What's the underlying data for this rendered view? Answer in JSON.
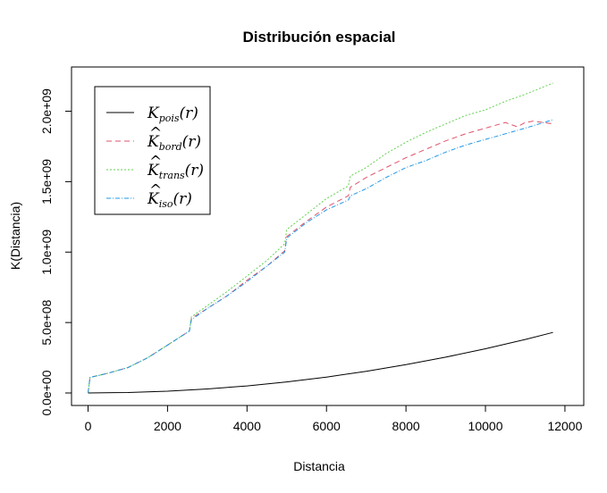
{
  "chart_data": {
    "type": "line",
    "title": "Distribución espacial",
    "xlabel": "Distancia",
    "ylabel": "K(Distancia)",
    "xlim": [
      0,
      11700
    ],
    "ylim": [
      0,
      2200000000
    ],
    "xticks": [
      0,
      2000,
      4000,
      6000,
      8000,
      10000,
      12000
    ],
    "xtick_labels": [
      "0",
      "2000",
      "4000",
      "6000",
      "8000",
      "10000",
      "12000"
    ],
    "yticks": [
      0,
      500000000,
      1000000000,
      1500000000,
      2000000000
    ],
    "ytick_labels": [
      "0.0e+00",
      "5.0e+08",
      "1.0e+09",
      "1.5e+09",
      "2.0e+09"
    ],
    "grid": false,
    "legend_position": "top-left",
    "series": [
      {
        "name": "K_pois(r)",
        "legend_main": "K",
        "legend_sub": "pois",
        "legend_tail": "(r)",
        "hat": false,
        "color": "#000000",
        "dash": "",
        "x": [
          0,
          1000,
          2000,
          3000,
          4000,
          5000,
          6000,
          7000,
          8000,
          9000,
          10000,
          11000,
          11700
        ],
        "y": [
          0,
          3100000,
          12600000,
          28300000,
          50300000,
          78500000,
          113000000,
          154000000,
          201000000,
          254000000,
          314000000,
          380000000,
          430000000
        ]
      },
      {
        "name": "K^bord(r)",
        "legend_main": "K",
        "legend_sub": "bord",
        "legend_tail": "(r)",
        "hat": true,
        "color": "#DF536B",
        "dash": "6,4",
        "x": [
          0,
          50,
          500,
          1000,
          1500,
          2000,
          2550,
          2600,
          3000,
          3500,
          4000,
          4500,
          4950,
          5000,
          5500,
          6000,
          6550,
          6600,
          7000,
          7500,
          8000,
          8500,
          9000,
          9500,
          10000,
          10500,
          10800,
          11000,
          11200,
          11700
        ],
        "y": [
          0,
          110000000,
          140000000,
          180000000,
          250000000,
          340000000,
          440000000,
          530000000,
          600000000,
          690000000,
          800000000,
          900000000,
          1010000000,
          1110000000,
          1220000000,
          1320000000,
          1400000000,
          1460000000,
          1530000000,
          1600000000,
          1670000000,
          1730000000,
          1790000000,
          1840000000,
          1880000000,
          1920000000,
          1890000000,
          1920000000,
          1930000000,
          1910000000
        ]
      },
      {
        "name": "K^trans(r)",
        "legend_main": "K",
        "legend_sub": "trans",
        "legend_tail": "(r)",
        "hat": true,
        "color": "#61D04F",
        "dash": "2,2",
        "x": [
          0,
          50,
          500,
          1000,
          1500,
          2000,
          2550,
          2600,
          3000,
          3500,
          4000,
          4500,
          4950,
          5000,
          5500,
          6000,
          6550,
          6600,
          7000,
          7500,
          8000,
          8500,
          9000,
          9500,
          10000,
          10500,
          11000,
          11700
        ],
        "y": [
          0,
          110000000,
          140000000,
          180000000,
          250000000,
          340000000,
          440000000,
          540000000,
          620000000,
          720000000,
          830000000,
          940000000,
          1060000000,
          1160000000,
          1270000000,
          1380000000,
          1470000000,
          1540000000,
          1600000000,
          1700000000,
          1780000000,
          1850000000,
          1910000000,
          1970000000,
          2010000000,
          2070000000,
          2120000000,
          2200000000
        ]
      },
      {
        "name": "K^iso(r)",
        "legend_main": "K",
        "legend_sub": "iso",
        "legend_tail": "(r)",
        "hat": true,
        "color": "#2297E6",
        "dash": "5,2,1,2",
        "x": [
          0,
          50,
          500,
          1000,
          1500,
          2000,
          2550,
          2600,
          3000,
          3500,
          4000,
          4500,
          4950,
          5000,
          5500,
          6000,
          6550,
          6600,
          7000,
          7500,
          8000,
          8500,
          9000,
          9500,
          10000,
          10500,
          11000,
          11700
        ],
        "y": [
          0,
          110000000,
          140000000,
          180000000,
          250000000,
          340000000,
          440000000,
          520000000,
          600000000,
          690000000,
          790000000,
          900000000,
          1000000000,
          1100000000,
          1210000000,
          1300000000,
          1370000000,
          1400000000,
          1450000000,
          1530000000,
          1600000000,
          1650000000,
          1710000000,
          1760000000,
          1800000000,
          1840000000,
          1880000000,
          1940000000
        ]
      }
    ]
  }
}
